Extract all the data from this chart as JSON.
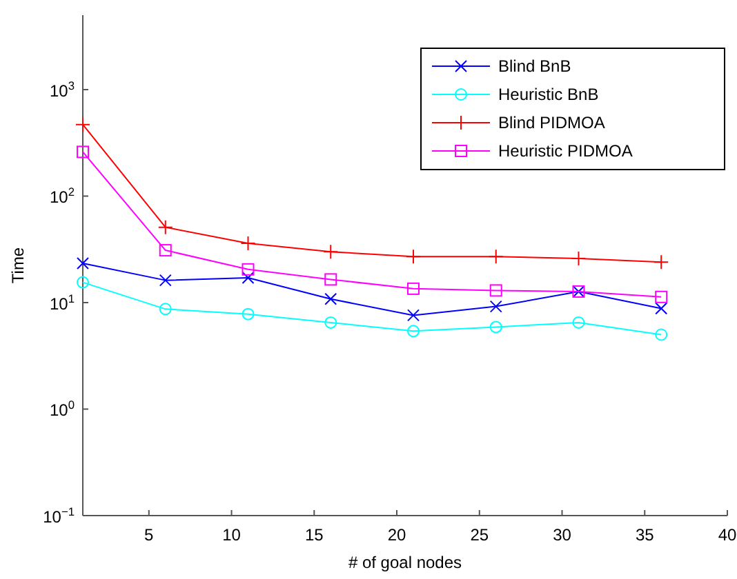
{
  "chart_data": {
    "type": "line",
    "xlabel": "# of goal nodes",
    "ylabel": "Time",
    "log": "y",
    "legend": "top right",
    "grid": false,
    "x": [
      1,
      6,
      11,
      16,
      21,
      26,
      31,
      36
    ],
    "xlim": [
      1,
      40
    ],
    "xticks": [
      5,
      10,
      15,
      20,
      25,
      30,
      35,
      40
    ],
    "ylim": [
      0.1,
      5000
    ],
    "yticks": [
      {
        "value": 0.1,
        "label": "10$^{−1}$"
      },
      {
        "value": 1,
        "label": "10$^{0}$"
      },
      {
        "value": 10,
        "label": "10$^{1}$"
      },
      {
        "value": 100,
        "label": "10$^{2}$"
      },
      {
        "value": 1000,
        "label": "10$^{3}$"
      }
    ],
    "series": [
      {
        "name": "Blind BnB",
        "color": "#0000ff",
        "marker": "x",
        "values": [
          23.4,
          16.2,
          17.1,
          10.8,
          7.6,
          9.2,
          12.7,
          8.8
        ]
      },
      {
        "name": "Heuristic BnB",
        "color": "#00ffff",
        "marker": "circle",
        "values": [
          15.5,
          8.7,
          7.8,
          6.5,
          5.4,
          5.9,
          6.5,
          5.0
        ]
      },
      {
        "name": "Blind PIDMOA",
        "color": "#ff0000",
        "marker": "cross",
        "values": [
          470,
          51,
          36,
          30,
          27,
          27,
          26,
          24
        ]
      },
      {
        "name": "Heuristic PIDMOA",
        "color": "#ff00ff",
        "marker": "square",
        "values": [
          260,
          31,
          20.5,
          16.5,
          13.5,
          13,
          12.7,
          11.3
        ]
      }
    ]
  }
}
